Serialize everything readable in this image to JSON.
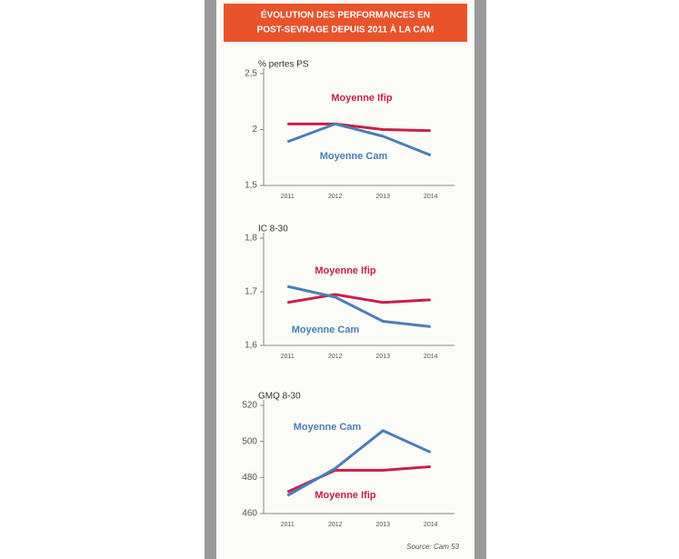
{
  "header": {
    "title": [
      "ÉVOLUTION DES PERFORMANCES EN",
      "POST-SEVRAGE DEPUIS 2011 À LA CAM"
    ]
  },
  "source": "Source: Cam 53",
  "chart_data": [
    {
      "type": "line",
      "y_label": "% pertes PS",
      "categories": [
        "2011",
        "2012",
        "2013",
        "2014"
      ],
      "ylim": [
        1.5,
        2.5
      ],
      "yticks": [
        {
          "value": 1.5,
          "label": "1,5"
        },
        2,
        {
          "value": 2.5,
          "label": "2,5"
        }
      ],
      "series": [
        {
          "name": "Moyenne Ifip",
          "color": "#c8204a",
          "values": [
            2.05,
            2.05,
            2.0,
            1.99
          ]
        },
        {
          "name": "Moyenne Cam",
          "color": "#4a7fb5",
          "values": [
            1.89,
            2.05,
            1.94,
            1.77
          ]
        }
      ]
    },
    {
      "type": "line",
      "y_label": "IC 8-30",
      "categories": [
        "2011",
        "2012",
        "2013",
        "2014"
      ],
      "ylim": [
        1.6,
        1.8
      ],
      "yticks": [
        {
          "value": 1.6,
          "label": "1,6"
        },
        {
          "value": 1.7,
          "label": "1,7"
        },
        {
          "value": 1.8,
          "label": "1,8"
        }
      ],
      "series": [
        {
          "name": "Moyenne Ifip",
          "color": "#c8204a",
          "values": [
            1.68,
            1.695,
            1.68,
            1.685
          ]
        },
        {
          "name": "Moyenne Cam",
          "color": "#4a7fb5",
          "values": [
            1.71,
            1.69,
            1.645,
            1.635
          ]
        }
      ]
    },
    {
      "type": "line",
      "y_label": "GMQ 8-30",
      "categories": [
        "2011",
        "2012",
        "2013",
        "2014"
      ],
      "ylim": [
        460,
        520
      ],
      "yticks": [
        460,
        480,
        500,
        520
      ],
      "series": [
        {
          "name": "Moyenne Ifip",
          "color": "#c8204a",
          "values": [
            472,
            484,
            484,
            486
          ]
        },
        {
          "name": "Moyenne Cam",
          "color": "#4a7fb5",
          "values": [
            470,
            485,
            506,
            494
          ]
        }
      ]
    }
  ]
}
